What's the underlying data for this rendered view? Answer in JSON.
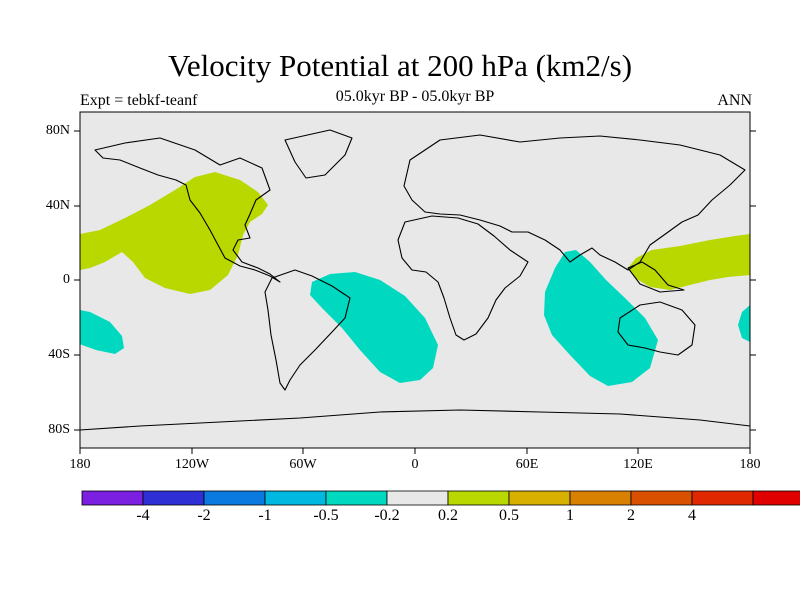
{
  "title": "Velocity Potential at 200 hPa (km2/s)",
  "subtitle": "05.0kyr BP - 05.0kyr BP",
  "experiment": "Expt = tebkf-teanf",
  "season": "ANN",
  "lat_labels": [
    "80N",
    "40N",
    "0",
    "40S",
    "80S"
  ],
  "lon_labels": [
    "180",
    "120W",
    "60W",
    "0",
    "60E",
    "120E",
    "180"
  ],
  "colorbar": {
    "colors": [
      "#7b1fe0",
      "#2f2fd6",
      "#0a7ae0",
      "#00b8e0",
      "#00d8c0",
      "#e8e8e8",
      "#b8d800",
      "#d8b000",
      "#d88000",
      "#d85000",
      "#e02800",
      "#e00000"
    ],
    "labels": [
      "-4",
      "-2",
      "-1",
      "-0.5",
      "-0.2",
      "0.2",
      "0.5",
      "1",
      "2",
      "4"
    ]
  },
  "colors": {
    "ocean_background": "#e8e8e8",
    "positive_fill": "#b8d800",
    "negative_fill": "#00d8c0"
  }
}
